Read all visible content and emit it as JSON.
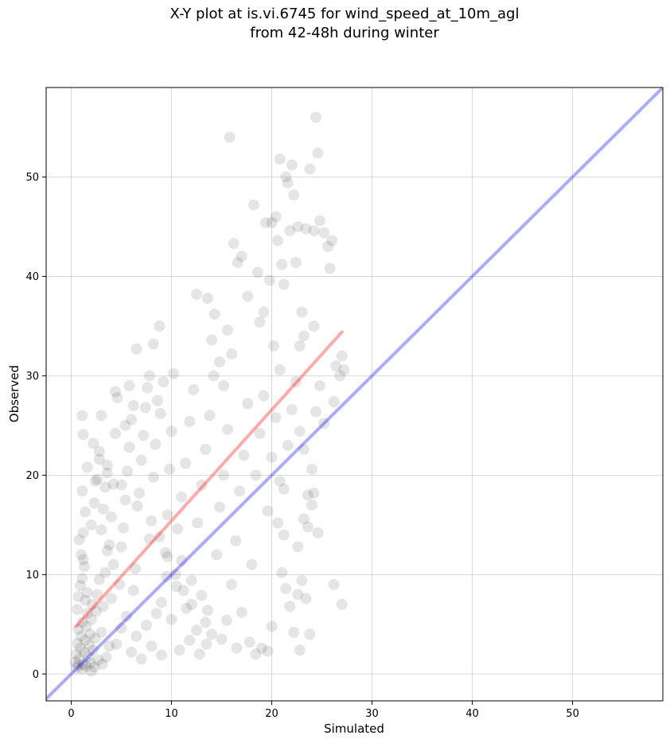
{
  "chart_data": {
    "type": "scatter",
    "title_lines": [
      "X-Y plot at is.vi.6745 for wind_speed_at_10m_agl",
      "from 42-48h during winter"
    ],
    "xlabel": "Simulated",
    "ylabel": "Observed",
    "xlim": [
      -2.5,
      59
    ],
    "ylim": [
      -2.7,
      59
    ],
    "xticks": [
      0,
      10,
      20,
      30,
      40,
      50
    ],
    "yticks": [
      0,
      10,
      20,
      30,
      40,
      50
    ],
    "grid": true,
    "point_color": "#000000",
    "point_alpha": 0.1,
    "reference_line": {
      "label": "1:1",
      "color": "#0000ff",
      "x": [
        -2.5,
        59
      ],
      "y": [
        -2.5,
        59
      ]
    },
    "fit_line": {
      "color": "#ff0000",
      "x": [
        0.5,
        27
      ],
      "y": [
        4.8,
        34.4
      ]
    },
    "points": [
      [
        0.4,
        1.2
      ],
      [
        0.5,
        2.0
      ],
      [
        0.6,
        3.1
      ],
      [
        0.7,
        4.5
      ],
      [
        0.8,
        1.5
      ],
      [
        0.9,
        2.6
      ],
      [
        1.0,
        3.8
      ],
      [
        1.1,
        5.2
      ],
      [
        1.2,
        1.0
      ],
      [
        1.3,
        2.2
      ],
      [
        1.4,
        3.4
      ],
      [
        1.5,
        4.8
      ],
      [
        1.6,
        6.1
      ],
      [
        1.7,
        1.8
      ],
      [
        1.8,
        2.9
      ],
      [
        1.9,
        4.0
      ],
      [
        2.0,
        5.5
      ],
      [
        2.1,
        7.0
      ],
      [
        2.2,
        2.4
      ],
      [
        2.4,
        3.6
      ],
      [
        0.6,
        6.5
      ],
      [
        0.7,
        7.8
      ],
      [
        0.9,
        8.9
      ],
      [
        1.1,
        9.6
      ],
      [
        1.3,
        10.8
      ],
      [
        1.0,
        12.0
      ],
      [
        0.8,
        13.5
      ],
      [
        1.4,
        7.4
      ],
      [
        1.6,
        8.2
      ],
      [
        1.2,
        11.5
      ],
      [
        2.5,
        6.3
      ],
      [
        2.6,
        8.0
      ],
      [
        2.8,
        9.5
      ],
      [
        3.0,
        4.2
      ],
      [
        3.2,
        6.8
      ],
      [
        3.4,
        10.2
      ],
      [
        3.6,
        12.4
      ],
      [
        3.8,
        2.8
      ],
      [
        4.0,
        7.6
      ],
      [
        4.2,
        11.0
      ],
      [
        0.5,
        0.6
      ],
      [
        0.7,
        0.9
      ],
      [
        1.1,
        0.5
      ],
      [
        1.5,
        0.8
      ],
      [
        1.9,
        1.1
      ],
      [
        2.3,
        0.7
      ],
      [
        2.7,
        1.4
      ],
      [
        3.1,
        1.0
      ],
      [
        3.5,
        1.7
      ],
      [
        2.0,
        0.3
      ],
      [
        1.2,
        14.2
      ],
      [
        1.4,
        16.3
      ],
      [
        1.1,
        18.4
      ],
      [
        1.6,
        20.8
      ],
      [
        1.2,
        24.1
      ],
      [
        1.1,
        26.0
      ],
      [
        2.0,
        15.0
      ],
      [
        2.3,
        17.2
      ],
      [
        2.6,
        19.6
      ],
      [
        2.2,
        23.2
      ],
      [
        2.8,
        22.4
      ],
      [
        3.0,
        14.5
      ],
      [
        3.2,
        16.6
      ],
      [
        3.4,
        18.8
      ],
      [
        3.6,
        20.2
      ],
      [
        3.8,
        13.0
      ],
      [
        4.0,
        15.8
      ],
      [
        4.2,
        19.1
      ],
      [
        4.4,
        28.4
      ],
      [
        4.6,
        27.8
      ],
      [
        4.8,
        9.0
      ],
      [
        5.0,
        12.8
      ],
      [
        5.2,
        14.7
      ],
      [
        5.4,
        17.5
      ],
      [
        5.6,
        20.4
      ],
      [
        5.8,
        22.8
      ],
      [
        6.0,
        25.6
      ],
      [
        6.2,
        8.4
      ],
      [
        6.4,
        10.6
      ],
      [
        6.6,
        16.9
      ],
      [
        4.5,
        3.0
      ],
      [
        5.0,
        4.6
      ],
      [
        5.5,
        5.8
      ],
      [
        6.0,
        2.2
      ],
      [
        6.5,
        3.8
      ],
      [
        7.0,
        1.5
      ],
      [
        7.5,
        4.9
      ],
      [
        8.0,
        2.8
      ],
      [
        8.5,
        6.1
      ],
      [
        9.0,
        1.9
      ],
      [
        6.8,
        18.2
      ],
      [
        7.0,
        21.5
      ],
      [
        7.2,
        24.0
      ],
      [
        7.4,
        26.8
      ],
      [
        7.6,
        28.8
      ],
      [
        7.8,
        13.6
      ],
      [
        8.0,
        15.4
      ],
      [
        8.2,
        19.8
      ],
      [
        8.4,
        23.1
      ],
      [
        8.6,
        27.5
      ],
      [
        6.5,
        32.7
      ],
      [
        8.2,
        33.2
      ],
      [
        8.8,
        35.0
      ],
      [
        8.9,
        26.2
      ],
      [
        9.2,
        29.4
      ],
      [
        9.4,
        12.2
      ],
      [
        9.6,
        16.0
      ],
      [
        9.8,
        20.6
      ],
      [
        10.0,
        24.4
      ],
      [
        10.2,
        30.2
      ],
      [
        9.0,
        7.2
      ],
      [
        9.5,
        9.8
      ],
      [
        10.0,
        5.5
      ],
      [
        10.5,
        8.8
      ],
      [
        11.0,
        11.4
      ],
      [
        11.5,
        6.6
      ],
      [
        12.0,
        9.4
      ],
      [
        12.5,
        4.4
      ],
      [
        13.0,
        7.9
      ],
      [
        13.5,
        3.0
      ],
      [
        10.6,
        14.6
      ],
      [
        11.0,
        17.8
      ],
      [
        11.4,
        21.2
      ],
      [
        11.8,
        25.4
      ],
      [
        12.2,
        28.6
      ],
      [
        12.6,
        15.2
      ],
      [
        13.0,
        19.0
      ],
      [
        13.4,
        22.6
      ],
      [
        13.8,
        26.0
      ],
      [
        14.2,
        30.0
      ],
      [
        12.5,
        38.2
      ],
      [
        13.6,
        37.8
      ],
      [
        14.0,
        33.6
      ],
      [
        14.3,
        36.2
      ],
      [
        14.8,
        31.4
      ],
      [
        15.2,
        29.0
      ],
      [
        15.6,
        34.6
      ],
      [
        16.0,
        32.2
      ],
      [
        16.2,
        43.3
      ],
      [
        15.8,
        54.0
      ],
      [
        14.5,
        12.0
      ],
      [
        14.8,
        16.8
      ],
      [
        15.2,
        20.0
      ],
      [
        15.6,
        24.6
      ],
      [
        16.0,
        9.0
      ],
      [
        16.4,
        13.4
      ],
      [
        16.8,
        18.4
      ],
      [
        17.2,
        22.0
      ],
      [
        17.6,
        27.2
      ],
      [
        18.0,
        11.0
      ],
      [
        14.0,
        4.0
      ],
      [
        15.0,
        3.5
      ],
      [
        15.5,
        5.4
      ],
      [
        16.5,
        2.6
      ],
      [
        17.0,
        6.2
      ],
      [
        17.8,
        3.2
      ],
      [
        18.4,
        2.0
      ],
      [
        19.0,
        2.6
      ],
      [
        19.6,
        2.3
      ],
      [
        20.0,
        4.8
      ],
      [
        16.6,
        41.4
      ],
      [
        17.0,
        42.0
      ],
      [
        17.6,
        38.0
      ],
      [
        18.2,
        47.2
      ],
      [
        18.6,
        40.4
      ],
      [
        18.8,
        35.4
      ],
      [
        19.2,
        36.4
      ],
      [
        19.4,
        45.4
      ],
      [
        19.8,
        39.6
      ],
      [
        20.2,
        33.0
      ],
      [
        20.0,
        45.4
      ],
      [
        20.4,
        46.0
      ],
      [
        20.6,
        43.6
      ],
      [
        20.8,
        51.8
      ],
      [
        21.0,
        41.2
      ],
      [
        21.2,
        39.2
      ],
      [
        21.4,
        50.0
      ],
      [
        21.6,
        49.4
      ],
      [
        21.8,
        44.6
      ],
      [
        22.0,
        51.2
      ],
      [
        22.2,
        48.2
      ],
      [
        22.4,
        41.4
      ],
      [
        22.6,
        45.0
      ],
      [
        22.8,
        33.0
      ],
      [
        23.0,
        36.4
      ],
      [
        23.4,
        44.8
      ],
      [
        23.8,
        50.8
      ],
      [
        24.2,
        44.6
      ],
      [
        24.4,
        56.0
      ],
      [
        24.6,
        52.4
      ],
      [
        24.8,
        45.6
      ],
      [
        25.2,
        44.4
      ],
      [
        25.6,
        43.0
      ],
      [
        25.8,
        40.8
      ],
      [
        26.0,
        43.6
      ],
      [
        26.4,
        31.0
      ],
      [
        26.8,
        30.0
      ],
      [
        27.0,
        32.0
      ],
      [
        27.2,
        30.6
      ],
      [
        26.2,
        27.4
      ],
      [
        18.4,
        20.0
      ],
      [
        18.8,
        24.2
      ],
      [
        19.2,
        28.0
      ],
      [
        19.6,
        16.4
      ],
      [
        20.0,
        21.8
      ],
      [
        20.4,
        25.8
      ],
      [
        20.8,
        30.6
      ],
      [
        21.2,
        18.6
      ],
      [
        21.6,
        23.0
      ],
      [
        22.0,
        26.6
      ],
      [
        22.4,
        29.4
      ],
      [
        22.8,
        24.4
      ],
      [
        23.2,
        22.6
      ],
      [
        23.6,
        18.0
      ],
      [
        24.0,
        20.6
      ],
      [
        24.4,
        26.4
      ],
      [
        24.8,
        29.0
      ],
      [
        25.2,
        25.2
      ],
      [
        23.2,
        34.0
      ],
      [
        24.2,
        35.0
      ],
      [
        20.6,
        15.2
      ],
      [
        21.0,
        10.2
      ],
      [
        21.4,
        8.6
      ],
      [
        21.8,
        6.8
      ],
      [
        22.2,
        4.2
      ],
      [
        22.6,
        8.0
      ],
      [
        23.0,
        9.4
      ],
      [
        23.4,
        7.6
      ],
      [
        23.8,
        4.0
      ],
      [
        22.8,
        2.4
      ],
      [
        22.6,
        12.8
      ],
      [
        23.2,
        15.6
      ],
      [
        23.6,
        14.8
      ],
      [
        24.0,
        17.0
      ],
      [
        24.6,
        14.2
      ],
      [
        24.2,
        18.2
      ],
      [
        21.2,
        14.0
      ],
      [
        20.8,
        19.4
      ],
      [
        26.2,
        9.0
      ],
      [
        27.0,
        7.0
      ],
      [
        10.8,
        2.4
      ],
      [
        11.8,
        3.4
      ],
      [
        12.8,
        2.0
      ],
      [
        13.4,
        5.2
      ],
      [
        13.6,
        6.4
      ],
      [
        12.0,
        7.0
      ],
      [
        11.2,
        8.4
      ],
      [
        10.4,
        10.0
      ],
      [
        9.6,
        11.8
      ],
      [
        8.8,
        13.8
      ],
      [
        3.0,
        26.0
      ],
      [
        5.4,
        25.0
      ],
      [
        6.2,
        27.0
      ],
      [
        5.8,
        29.0
      ],
      [
        4.4,
        24.2
      ],
      [
        3.6,
        21.0
      ],
      [
        2.8,
        21.6
      ],
      [
        2.4,
        19.4
      ],
      [
        5.0,
        19.0
      ],
      [
        7.8,
        30.0
      ]
    ]
  }
}
